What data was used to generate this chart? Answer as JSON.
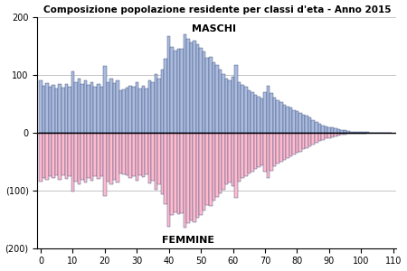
{
  "title": "Composizione popolazione residente per classi d'eta - Anno 2015",
  "maschi_label": "MASCHI",
  "femmine_label": "FEMMINE",
  "xlim": [
    -1,
    111
  ],
  "ylim": [
    -200,
    200
  ],
  "yticks": [
    -200,
    -100,
    0,
    100,
    200
  ],
  "ytick_labels": [
    "(200)",
    "(100)",
    "0",
    "100",
    "200"
  ],
  "xticks": [
    0,
    10,
    20,
    30,
    40,
    50,
    60,
    70,
    80,
    90,
    100,
    110
  ],
  "bar_color_male": "#aabbdd",
  "bar_color_female": "#ffbbcc",
  "bar_edge_color": "#334477",
  "background_color": "#ffffff",
  "grid_color": "#bbbbbb",
  "maschi": [
    90,
    82,
    86,
    80,
    83,
    77,
    85,
    78,
    84,
    79,
    107,
    88,
    93,
    85,
    90,
    83,
    87,
    80,
    84,
    79,
    115,
    88,
    93,
    86,
    90,
    73,
    75,
    78,
    82,
    79,
    87,
    77,
    81,
    76,
    91,
    87,
    102,
    93,
    110,
    128,
    168,
    148,
    143,
    146,
    145,
    170,
    162,
    157,
    160,
    153,
    147,
    140,
    130,
    132,
    122,
    117,
    110,
    102,
    94,
    90,
    97,
    117,
    88,
    83,
    80,
    73,
    70,
    66,
    63,
    59,
    70,
    82,
    69,
    61,
    56,
    53,
    49,
    46,
    43,
    39,
    37,
    35,
    31,
    29,
    26,
    21,
    18,
    15,
    13,
    11,
    10,
    9,
    7,
    6,
    5,
    4,
    3,
    2,
    2,
    1,
    1,
    1,
    1,
    0,
    0,
    0,
    0,
    0,
    0,
    0
  ],
  "femmine": [
    -85,
    -78,
    -82,
    -76,
    -79,
    -74,
    -81,
    -74,
    -80,
    -75,
    -102,
    -84,
    -89,
    -81,
    -86,
    -79,
    -83,
    -76,
    -80,
    -75,
    -110,
    -84,
    -89,
    -82,
    -86,
    -70,
    -72,
    -74,
    -78,
    -75,
    -83,
    -73,
    -77,
    -72,
    -87,
    -83,
    -98,
    -89,
    -106,
    -124,
    -163,
    -143,
    -138,
    -141,
    -140,
    -165,
    -157,
    -152,
    -155,
    -148,
    -142,
    -135,
    -125,
    -127,
    -117,
    -112,
    -105,
    -98,
    -90,
    -86,
    -93,
    -113,
    -84,
    -79,
    -76,
    -70,
    -67,
    -63,
    -60,
    -56,
    -67,
    -79,
    -66,
    -58,
    -53,
    -50,
    -47,
    -44,
    -41,
    -37,
    -35,
    -33,
    -29,
    -27,
    -24,
    -20,
    -17,
    -14,
    -12,
    -10,
    -9,
    -8,
    -6,
    -5,
    -4,
    -3,
    -2,
    -2,
    -1,
    -1,
    -1,
    -1,
    0,
    0,
    0,
    0,
    0,
    0,
    0,
    0
  ]
}
